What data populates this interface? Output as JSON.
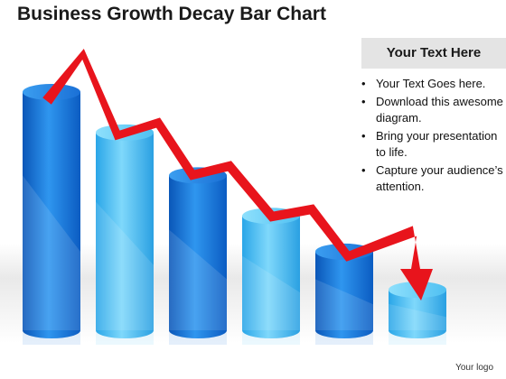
{
  "title": "Business Growth Decay Bar Chart",
  "panel": {
    "header": "Your Text Here",
    "bullets": [
      "Your Text Goes here.",
      "Download this awesome diagram.",
      "Bring your presentation to life.",
      "Capture your audience’s attention."
    ]
  },
  "logo": "Your logo",
  "colors": {
    "bar_dark": "#1e7fe0",
    "bar_light": "#5cc9f5",
    "arrow": "#e8141c",
    "panel_header_bg": "#e4e4e4"
  },
  "chart_data": {
    "type": "bar",
    "categories": [
      "",
      "",
      "",
      "",
      "",
      ""
    ],
    "values": [
      100,
      83,
      65,
      48,
      33,
      17
    ],
    "trend": "decreasing",
    "overlay": "red zigzag downward arrow"
  }
}
